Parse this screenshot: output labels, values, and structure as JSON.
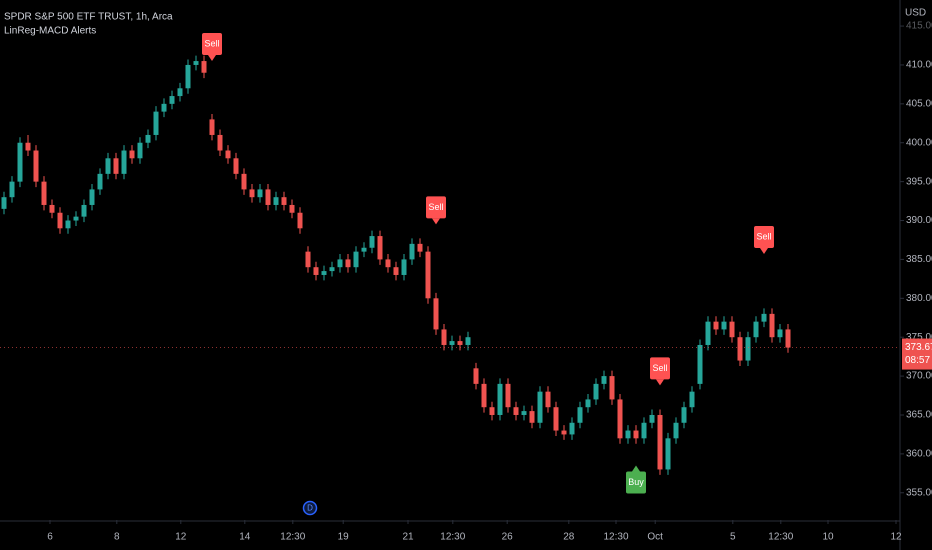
{
  "chart_data": {
    "type": "candlestick",
    "title": "SPDR S&P 500 ETF TRUST, 1h, Arca",
    "subtitle": "LinReg-MACD Alerts",
    "currency": "USD",
    "up_color": "#26a69a",
    "down_color": "#ef5350",
    "grid": false,
    "open": [
      391.5,
      393,
      395,
      400,
      399,
      395,
      392,
      391,
      389,
      390,
      390.5,
      392,
      394,
      396,
      398,
      396,
      399,
      398,
      400,
      401,
      404,
      405,
      406,
      407,
      410,
      410.5,
      403,
      401,
      399,
      398,
      396,
      394,
      393,
      394,
      392,
      393,
      392,
      391,
      386,
      384,
      383,
      383.5,
      384,
      385,
      384,
      386,
      386.5,
      388,
      385,
      384,
      383,
      385,
      387,
      386,
      380,
      376,
      374,
      374.5,
      374,
      371,
      369,
      366,
      365,
      369,
      366,
      365,
      365.5,
      364,
      368,
      366,
      363,
      362.5,
      364,
      366,
      367,
      369,
      370,
      367,
      362,
      363,
      362,
      364,
      365,
      358,
      362,
      364,
      366,
      369,
      374,
      377,
      376,
      377,
      375,
      372,
      375,
      377,
      378,
      375,
      376
    ],
    "high": [
      393.7,
      395.7,
      400.7,
      401,
      399.7,
      395.7,
      392.7,
      391.7,
      390.7,
      391.2,
      392.7,
      394.7,
      396.7,
      398.7,
      398.7,
      399.7,
      399.7,
      400.7,
      401.7,
      404.7,
      405.7,
      406.7,
      407.7,
      410.7,
      411.2,
      411.2,
      403.7,
      401.7,
      399.7,
      398.7,
      396.7,
      394.7,
      394.7,
      394.7,
      393.7,
      393.7,
      392.7,
      391.7,
      386.7,
      384.7,
      384.2,
      384.7,
      385.7,
      385.7,
      386.7,
      387.2,
      388.7,
      388.7,
      385.7,
      384.7,
      385.7,
      387.7,
      387.7,
      386.7,
      380.7,
      376.7,
      375.2,
      375.2,
      375.7,
      371.7,
      369.7,
      366.7,
      369.7,
      369.7,
      366.7,
      366.2,
      366.2,
      368.7,
      368.7,
      366.7,
      363.7,
      364.7,
      366.7,
      367.7,
      369.7,
      370.7,
      370.7,
      367.7,
      363.7,
      363.7,
      364.7,
      365.7,
      365.7,
      362.7,
      364.7,
      366.7,
      368.7,
      374.7,
      377.7,
      377.7,
      377.7,
      377.7,
      375.7,
      375.7,
      377.7,
      378.7,
      378.7,
      376.7,
      376.7
    ],
    "low": [
      390.8,
      392.3,
      394.3,
      398.3,
      394.3,
      391.3,
      390.3,
      388.3,
      388.3,
      389.3,
      389.8,
      391.3,
      393.3,
      395.3,
      395.3,
      395.3,
      397.3,
      397.3,
      399.3,
      400.3,
      403.3,
      404.3,
      405.3,
      406.3,
      409.3,
      408.3,
      400.3,
      398.3,
      397.3,
      395.3,
      393.3,
      392.3,
      392.3,
      391.3,
      391.3,
      391.3,
      390.3,
      388.3,
      383.3,
      382.3,
      382.3,
      382.8,
      383.3,
      383.3,
      383.3,
      385.3,
      385.8,
      384.3,
      383.3,
      382.3,
      382.3,
      384.3,
      385.3,
      379.3,
      375.3,
      373.3,
      373.3,
      373.3,
      373.3,
      368.3,
      365.3,
      364.3,
      364.3,
      365.3,
      364.3,
      364.3,
      363.3,
      363.3,
      365.3,
      362.3,
      361.8,
      361.8,
      363.3,
      365.3,
      366.3,
      368.3,
      366.3,
      361.3,
      361.3,
      361.3,
      361.3,
      363.3,
      357.3,
      357.3,
      361.3,
      363.3,
      365.3,
      368.3,
      373.3,
      375.3,
      375.3,
      374.3,
      371.3,
      371.3,
      374.3,
      376.3,
      374.3,
      374.3,
      373.0
    ],
    "close": [
      393,
      395,
      400,
      399,
      395,
      392,
      391,
      389,
      390,
      390.5,
      392,
      394,
      396,
      398,
      396,
      399,
      398,
      400,
      401,
      404,
      405,
      406,
      407,
      410,
      410.5,
      409,
      401,
      399,
      398,
      396,
      394,
      393,
      394,
      392,
      393,
      392,
      391,
      389,
      384,
      383,
      383.5,
      384,
      385,
      384,
      386,
      386.5,
      388,
      385,
      384,
      383,
      385,
      387,
      386,
      380,
      376,
      374,
      374.5,
      374,
      375,
      369,
      366,
      365,
      369,
      366,
      365,
      365.5,
      364,
      368,
      366,
      363,
      362.5,
      364,
      366,
      367,
      369,
      370,
      367,
      362,
      363,
      362,
      364,
      365,
      358,
      362,
      364,
      366,
      368,
      374,
      377,
      376,
      377,
      375,
      372,
      375,
      377,
      378,
      375,
      376,
      373.67
    ],
    "last_price": 373.67,
    "last_price_label": "373.67",
    "countdown": "08:57",
    "signals": [
      {
        "index": 26,
        "price": 410.5,
        "label": "Sell",
        "side": "sell"
      },
      {
        "index": 54,
        "price": 389.5,
        "label": "Sell",
        "side": "sell"
      },
      {
        "index": 79,
        "price": 358.5,
        "label": "Buy",
        "side": "buy"
      },
      {
        "index": 82,
        "price": 368.8,
        "label": "Sell",
        "side": "sell"
      },
      {
        "index": 95,
        "price": 385.7,
        "label": "Sell",
        "side": "sell"
      }
    ],
    "markers": [
      {
        "index": 38.25,
        "label": "D"
      }
    ],
    "xlim": [
      -0.5,
      112
    ],
    "ylim": [
      351.5,
      418.35
    ],
    "xticks": [
      {
        "value": 5.75,
        "label": "6"
      },
      {
        "value": 14.1,
        "label": "8"
      },
      {
        "value": 22.1,
        "label": "12"
      },
      {
        "value": 30.1,
        "label": "14"
      },
      {
        "value": 36.1,
        "label": "12:30"
      },
      {
        "value": 42.4,
        "label": "19"
      },
      {
        "value": 50.5,
        "label": "21"
      },
      {
        "value": 56.1,
        "label": "12:30"
      },
      {
        "value": 62.9,
        "label": "26"
      },
      {
        "value": 70.6,
        "label": "28"
      },
      {
        "value": 76.5,
        "label": "12:30"
      },
      {
        "value": 81.4,
        "label": "Oct"
      },
      {
        "value": 91.1,
        "label": "5"
      },
      {
        "value": 97.1,
        "label": "12:30"
      },
      {
        "value": 103,
        "label": "10"
      },
      {
        "value": 111.5,
        "label": "12"
      }
    ],
    "yticks": [
      {
        "value": 355,
        "label": "355.00"
      },
      {
        "value": 360,
        "label": "360.00"
      },
      {
        "value": 365,
        "label": "365.00"
      },
      {
        "value": 370,
        "label": "370.00"
      },
      {
        "value": 375,
        "label": "375.00"
      },
      {
        "value": 380,
        "label": "380.00"
      },
      {
        "value": 385,
        "label": "385.00"
      },
      {
        "value": 390,
        "label": "390.00"
      },
      {
        "value": 395,
        "label": "395.00"
      },
      {
        "value": 400,
        "label": "400.00"
      },
      {
        "value": 405,
        "label": "405.00"
      },
      {
        "value": 410,
        "label": "410.00"
      },
      {
        "value": 415,
        "label": "415.00"
      }
    ]
  }
}
